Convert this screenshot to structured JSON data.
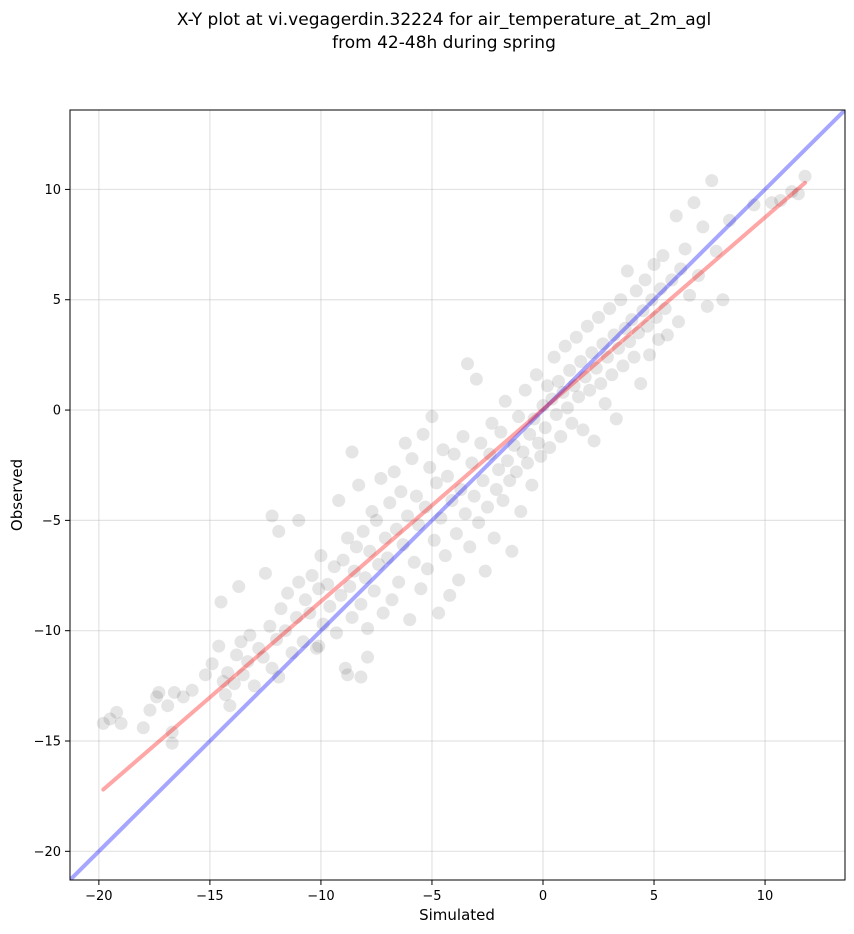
{
  "chart_data": {
    "type": "scatter",
    "title": "X-Y plot at vi.vegagerdin.32224 for air_temperature_at_2m_agl",
    "subtitle": "from 42-48h during spring",
    "xlabel": "Simulated",
    "ylabel": "Observed",
    "xlim": [
      -21.3,
      13.6
    ],
    "ylim": [
      -21.3,
      13.6
    ],
    "x_ticks": [
      -20,
      -15,
      -10,
      -5,
      0,
      5,
      10
    ],
    "y_ticks": [
      -20,
      -15,
      -10,
      -5,
      0,
      5,
      10
    ],
    "x_tick_labels": [
      "−20",
      "−15",
      "−10",
      "−5",
      "0",
      "5",
      "10"
    ],
    "y_tick_labels": [
      "−20",
      "−15",
      "−10",
      "−5",
      "0",
      "5",
      "10"
    ],
    "grid": true,
    "colors": {
      "points": "#000000",
      "identity_line": "#0000ff",
      "fit_line": "#ff0000"
    },
    "identity_line": {
      "x": [
        -21.3,
        13.6
      ],
      "y": [
        -21.3,
        13.6
      ]
    },
    "fit_line": {
      "x": [
        -19.8,
        11.8
      ],
      "y": [
        -17.2,
        10.3
      ]
    },
    "points": [
      [
        -19.8,
        -14.2
      ],
      [
        -19.5,
        -14.0
      ],
      [
        -19.2,
        -13.7
      ],
      [
        -19.0,
        -14.2
      ],
      [
        -18.0,
        -14.4
      ],
      [
        -17.7,
        -13.6
      ],
      [
        -17.4,
        -13.0
      ],
      [
        -17.3,
        -12.8
      ],
      [
        -16.9,
        -13.4
      ],
      [
        -16.7,
        -15.1
      ],
      [
        -16.6,
        -12.8
      ],
      [
        -16.2,
        -13.0
      ],
      [
        -15.8,
        -12.7
      ],
      [
        -15.2,
        -12.0
      ],
      [
        -14.9,
        -11.5
      ],
      [
        -14.6,
        -10.7
      ],
      [
        -14.5,
        -8.7
      ],
      [
        -14.4,
        -12.3
      ],
      [
        -14.2,
        -11.9
      ],
      [
        -14.1,
        -13.4
      ],
      [
        -13.9,
        -12.4
      ],
      [
        -13.8,
        -11.1
      ],
      [
        -13.6,
        -10.5
      ],
      [
        -13.5,
        -12.0
      ],
      [
        -13.3,
        -11.4
      ],
      [
        -13.2,
        -10.2
      ],
      [
        -13.0,
        -12.5
      ],
      [
        -12.8,
        -10.8
      ],
      [
        -12.6,
        -11.2
      ],
      [
        -12.5,
        -7.4
      ],
      [
        -12.3,
        -9.8
      ],
      [
        -12.2,
        -11.7
      ],
      [
        -12.0,
        -10.4
      ],
      [
        -11.9,
        -12.1
      ],
      [
        -11.8,
        -9.0
      ],
      [
        -11.6,
        -10.0
      ],
      [
        -11.5,
        -8.3
      ],
      [
        -11.3,
        -11.0
      ],
      [
        -11.1,
        -9.4
      ],
      [
        -11.0,
        -7.8
      ],
      [
        -10.8,
        -10.5
      ],
      [
        -10.7,
        -8.6
      ],
      [
        -10.5,
        -9.2
      ],
      [
        -10.4,
        -7.5
      ],
      [
        -10.2,
        -10.8
      ],
      [
        -10.1,
        -8.1
      ],
      [
        -10.0,
        -6.6
      ],
      [
        -9.9,
        -9.7
      ],
      [
        -9.7,
        -7.9
      ],
      [
        -9.6,
        -8.9
      ],
      [
        -9.4,
        -7.1
      ],
      [
        -9.3,
        -10.1
      ],
      [
        -9.1,
        -8.4
      ],
      [
        -9.0,
        -6.8
      ],
      [
        -8.9,
        -11.7
      ],
      [
        -8.8,
        -5.8
      ],
      [
        -8.7,
        -8.0
      ],
      [
        -8.6,
        -9.4
      ],
      [
        -8.5,
        -7.3
      ],
      [
        -8.4,
        -6.2
      ],
      [
        -8.3,
        -3.4
      ],
      [
        -8.2,
        -8.8
      ],
      [
        -8.1,
        -5.5
      ],
      [
        -8.0,
        -7.6
      ],
      [
        -7.9,
        -9.9
      ],
      [
        -7.8,
        -6.4
      ],
      [
        -7.7,
        -4.6
      ],
      [
        -7.6,
        -8.2
      ],
      [
        -7.5,
        -5.0
      ],
      [
        -7.4,
        -7.0
      ],
      [
        -7.3,
        -3.1
      ],
      [
        -7.2,
        -9.2
      ],
      [
        -7.1,
        -5.8
      ],
      [
        -7.0,
        -6.7
      ],
      [
        -6.9,
        -4.2
      ],
      [
        -6.8,
        -8.6
      ],
      [
        -6.7,
        -2.8
      ],
      [
        -6.6,
        -5.4
      ],
      [
        -6.5,
        -7.8
      ],
      [
        -6.4,
        -3.7
      ],
      [
        -6.3,
        -6.1
      ],
      [
        -6.2,
        -1.5
      ],
      [
        -6.1,
        -4.8
      ],
      [
        -6.0,
        -9.5
      ],
      [
        -5.9,
        -2.2
      ],
      [
        -5.8,
        -6.9
      ],
      [
        -5.7,
        -3.9
      ],
      [
        -5.6,
        -5.2
      ],
      [
        -5.5,
        -8.1
      ],
      [
        -5.4,
        -1.1
      ],
      [
        -5.3,
        -4.4
      ],
      [
        -5.2,
        -7.2
      ],
      [
        -5.1,
        -2.6
      ],
      [
        -5.0,
        -0.3
      ],
      [
        -4.9,
        -5.9
      ],
      [
        -4.8,
        -3.3
      ],
      [
        -4.7,
        -9.2
      ],
      [
        -4.6,
        -4.9
      ],
      [
        -4.5,
        -1.8
      ],
      [
        -4.4,
        -6.6
      ],
      [
        -4.3,
        -3.0
      ],
      [
        -4.2,
        -8.4
      ],
      [
        -4.1,
        -4.1
      ],
      [
        -4.0,
        -2.0
      ],
      [
        -3.9,
        -5.6
      ],
      [
        -3.8,
        -7.7
      ],
      [
        -3.7,
        -3.6
      ],
      [
        -3.6,
        -1.2
      ],
      [
        -3.5,
        -4.7
      ],
      [
        -3.4,
        2.1
      ],
      [
        -3.3,
        -6.2
      ],
      [
        -3.2,
        -2.4
      ],
      [
        -3.1,
        -3.9
      ],
      [
        -3.0,
        1.4
      ],
      [
        -2.9,
        -5.1
      ],
      [
        -2.8,
        -1.5
      ],
      [
        -2.7,
        -3.2
      ],
      [
        -2.6,
        -7.3
      ],
      [
        -2.5,
        -4.4
      ],
      [
        -2.4,
        -2.0
      ],
      [
        -2.3,
        -0.6
      ],
      [
        -2.2,
        -5.8
      ],
      [
        -2.1,
        -3.6
      ],
      [
        -2.0,
        -2.7
      ],
      [
        -1.9,
        -1.0
      ],
      [
        -1.8,
        -4.1
      ],
      [
        -1.7,
        0.4
      ],
      [
        -1.6,
        -2.3
      ],
      [
        -1.5,
        -3.2
      ],
      [
        -1.4,
        -6.4
      ],
      [
        -1.3,
        -1.6
      ],
      [
        -1.2,
        -2.8
      ],
      [
        -1.1,
        -0.3
      ],
      [
        -1.0,
        -4.6
      ],
      [
        -0.9,
        -1.9
      ],
      [
        -0.8,
        0.9
      ],
      [
        -0.7,
        -2.4
      ],
      [
        -0.6,
        -1.1
      ],
      [
        -0.5,
        -3.4
      ],
      [
        -0.4,
        -0.4
      ],
      [
        -0.3,
        1.6
      ],
      [
        -0.2,
        -1.5
      ],
      [
        -0.1,
        -2.1
      ],
      [
        0.0,
        0.2
      ],
      [
        0.1,
        -0.8
      ],
      [
        0.2,
        1.1
      ],
      [
        0.3,
        -1.7
      ],
      [
        0.4,
        0.5
      ],
      [
        0.5,
        2.4
      ],
      [
        0.6,
        -0.2
      ],
      [
        0.7,
        1.3
      ],
      [
        0.8,
        -1.2
      ],
      [
        0.9,
        0.8
      ],
      [
        1.0,
        2.9
      ],
      [
        1.1,
        0.1
      ],
      [
        1.2,
        1.8
      ],
      [
        1.3,
        -0.6
      ],
      [
        1.4,
        1.1
      ],
      [
        1.5,
        3.3
      ],
      [
        1.6,
        0.6
      ],
      [
        1.7,
        2.2
      ],
      [
        1.8,
        -0.9
      ],
      [
        1.9,
        1.5
      ],
      [
        2.0,
        3.8
      ],
      [
        2.1,
        0.9
      ],
      [
        2.2,
        2.6
      ],
      [
        2.3,
        -1.4
      ],
      [
        2.4,
        1.9
      ],
      [
        2.5,
        4.2
      ],
      [
        2.6,
        1.2
      ],
      [
        2.7,
        3.0
      ],
      [
        2.8,
        0.3
      ],
      [
        2.9,
        2.4
      ],
      [
        3.0,
        4.6
      ],
      [
        3.1,
        1.6
      ],
      [
        3.2,
        3.4
      ],
      [
        3.3,
        -0.4
      ],
      [
        3.4,
        2.8
      ],
      [
        3.5,
        5.0
      ],
      [
        3.6,
        2.0
      ],
      [
        3.7,
        3.7
      ],
      [
        3.8,
        6.3
      ],
      [
        3.9,
        3.1
      ],
      [
        4.0,
        4.1
      ],
      [
        4.1,
        2.4
      ],
      [
        4.2,
        5.4
      ],
      [
        4.3,
        3.5
      ],
      [
        4.4,
        1.2
      ],
      [
        4.5,
        4.5
      ],
      [
        4.6,
        5.9
      ],
      [
        4.7,
        3.8
      ],
      [
        4.8,
        2.5
      ],
      [
        4.9,
        5.0
      ],
      [
        5.0,
        6.6
      ],
      [
        5.1,
        4.2
      ],
      [
        5.2,
        3.2
      ],
      [
        5.3,
        5.5
      ],
      [
        5.4,
        7.0
      ],
      [
        5.5,
        4.6
      ],
      [
        5.6,
        3.4
      ],
      [
        5.8,
        5.9
      ],
      [
        6.0,
        8.8
      ],
      [
        6.1,
        4.0
      ],
      [
        6.2,
        6.4
      ],
      [
        6.4,
        7.3
      ],
      [
        6.6,
        5.2
      ],
      [
        6.8,
        9.4
      ],
      [
        7.0,
        6.1
      ],
      [
        7.2,
        8.3
      ],
      [
        7.4,
        4.7
      ],
      [
        7.6,
        10.4
      ],
      [
        7.8,
        7.2
      ],
      [
        8.1,
        5.0
      ],
      [
        8.4,
        8.6
      ],
      [
        9.5,
        9.3
      ],
      [
        10.3,
        9.4
      ],
      [
        10.7,
        9.5
      ],
      [
        11.2,
        9.9
      ],
      [
        11.5,
        9.8
      ],
      [
        11.8,
        10.6
      ],
      [
        -11.9,
        -5.5
      ],
      [
        -12.2,
        -4.8
      ],
      [
        -11.0,
        -5.0
      ],
      [
        -9.2,
        -4.1
      ],
      [
        -8.6,
        -1.9
      ],
      [
        -10.1,
        -10.7
      ],
      [
        -8.8,
        -12.0
      ],
      [
        -7.9,
        -11.2
      ],
      [
        -8.2,
        -12.1
      ],
      [
        -16.7,
        -14.6
      ],
      [
        -14.3,
        -12.9
      ],
      [
        -13.7,
        -8.0
      ]
    ]
  }
}
